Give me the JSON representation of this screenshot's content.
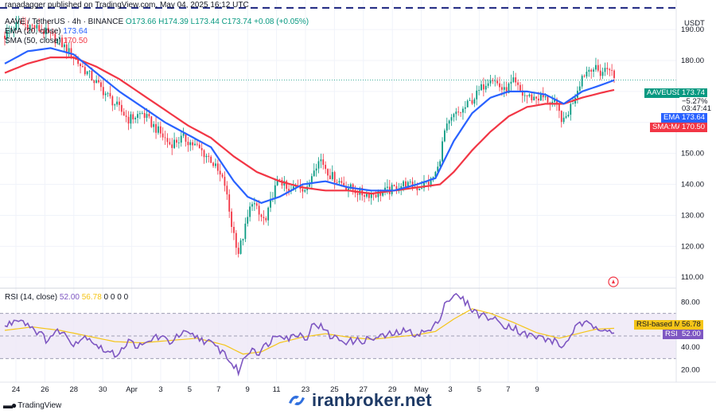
{
  "header": {
    "publisher_line": "ranadagger published on TradingView.com, May 04, 2025 16:12 UTC"
  },
  "legend": {
    "symbol": "AAVE / TetherUS · 4h · BINANCE",
    "ohlc": "O173.66 H174.39 L173.44 C173.74 +0.08 (+0.05%)",
    "ema_label": "EMA (20, close)",
    "ema_value": "173.64",
    "sma_label": "SMA (50, close)",
    "sma_value": "170.50",
    "rsi_label": "RSI (14, close)",
    "rsi_value": "52.00",
    "rsi_ma_value": "56.78",
    "rsi_extra": "0 0 0 0"
  },
  "price_axis": {
    "currency": "USDT",
    "ticks": [
      "190.00",
      "180.00",
      "170.00",
      "160.00",
      "150.00",
      "140.00",
      "130.00",
      "120.00",
      "110.00"
    ]
  },
  "rsi_axis": {
    "ticks": [
      "80.00",
      "60.00",
      "40.00",
      "20.00"
    ]
  },
  "tags": {
    "price_symbol": "AAVEUSDT",
    "price_value": "173.74",
    "price_change": "−5.27%",
    "countdown": "03:47:41",
    "ema_name": "EMA",
    "ema_value": "173.64",
    "sma_name": "SMA:MA",
    "sma_value": "170.50",
    "rsi_ma_name": "RSI-based MA",
    "rsi_ma_value": "56.78",
    "rsi_name": "RSI",
    "rsi_value": "52.00"
  },
  "watermark": {
    "text": "iranbroker.net"
  },
  "footer": {
    "brand": "TradingView"
  },
  "colors": {
    "up": "#089981",
    "down": "#f23645",
    "ema": "#2962ff",
    "sma": "#f23645",
    "rsi": "#7e57c2",
    "rsi_ma": "#f5c518",
    "rsi_band": "#ede7f6",
    "target_line": "#1a237e"
  },
  "chart_data": [
    {
      "type": "candlestick",
      "name": "AAVEUSDT 4h",
      "x_ticks": [
        "24",
        "26",
        "28",
        "30",
        "Apr",
        "3",
        "5",
        "7",
        "9",
        "11",
        "23",
        "25",
        "27",
        "29",
        "May",
        "3",
        "5",
        "7",
        "9"
      ],
      "y_range": [
        108,
        198
      ],
      "y_ticks": [
        190,
        180,
        170,
        160,
        150,
        140,
        130,
        120,
        110
      ],
      "horizontal_line": 197,
      "last_price": 173.74,
      "segments": [
        [
          0,
          188
        ],
        [
          6,
          192
        ],
        [
          12,
          191
        ],
        [
          18,
          189
        ],
        [
          24,
          186
        ],
        [
          30,
          181
        ],
        [
          36,
          176
        ],
        [
          42,
          171
        ],
        [
          48,
          166
        ],
        [
          54,
          161
        ],
        [
          60,
          163
        ],
        [
          66,
          158
        ],
        [
          72,
          153
        ],
        [
          78,
          155
        ],
        [
          84,
          152
        ],
        [
          90,
          148
        ],
        [
          96,
          140
        ],
        [
          99,
          127
        ],
        [
          102,
          118
        ],
        [
          105,
          126
        ],
        [
          108,
          135
        ],
        [
          111,
          130
        ],
        [
          114,
          128
        ],
        [
          117,
          137
        ],
        [
          120,
          142
        ],
        [
          124,
          137
        ],
        [
          128,
          140
        ],
        [
          132,
          138
        ],
        [
          135,
          146
        ],
        [
          138,
          148
        ],
        [
          142,
          143
        ],
        [
          146,
          141
        ],
        [
          150,
          139
        ],
        [
          156,
          137
        ],
        [
          162,
          137
        ],
        [
          168,
          138
        ],
        [
          174,
          140
        ],
        [
          180,
          139
        ],
        [
          186,
          141
        ],
        [
          189,
          145
        ],
        [
          192,
          157
        ],
        [
          196,
          162
        ],
        [
          200,
          164
        ],
        [
          206,
          169
        ],
        [
          212,
          175
        ],
        [
          218,
          170
        ],
        [
          222,
          173
        ],
        [
          226,
          169
        ],
        [
          230,
          168
        ],
        [
          235,
          168
        ],
        [
          240,
          166
        ],
        [
          244,
          160
        ],
        [
          248,
          167
        ],
        [
          252,
          175
        ],
        [
          256,
          178
        ],
        [
          260,
          176
        ],
        [
          264,
          178
        ],
        [
          266,
          174
        ]
      ],
      "ema": [
        [
          0,
          179
        ],
        [
          10,
          183
        ],
        [
          20,
          184
        ],
        [
          30,
          182
        ],
        [
          40,
          176
        ],
        [
          50,
          170
        ],
        [
          60,
          165
        ],
        [
          70,
          160
        ],
        [
          80,
          156
        ],
        [
          90,
          152
        ],
        [
          100,
          141
        ],
        [
          106,
          136
        ],
        [
          112,
          134
        ],
        [
          120,
          136
        ],
        [
          130,
          140
        ],
        [
          140,
          141
        ],
        [
          150,
          139
        ],
        [
          160,
          138
        ],
        [
          170,
          138
        ],
        [
          180,
          140
        ],
        [
          188,
          142
        ],
        [
          196,
          154
        ],
        [
          204,
          163
        ],
        [
          212,
          168
        ],
        [
          220,
          170
        ],
        [
          228,
          170
        ],
        [
          236,
          169
        ],
        [
          244,
          166
        ],
        [
          252,
          170
        ],
        [
          260,
          172
        ],
        [
          266,
          173.64
        ]
      ],
      "sma": [
        [
          0,
          176
        ],
        [
          10,
          179
        ],
        [
          20,
          181
        ],
        [
          30,
          181
        ],
        [
          40,
          178
        ],
        [
          50,
          174
        ],
        [
          60,
          169
        ],
        [
          70,
          164
        ],
        [
          80,
          159
        ],
        [
          90,
          155
        ],
        [
          100,
          149
        ],
        [
          110,
          144
        ],
        [
          120,
          141
        ],
        [
          130,
          139
        ],
        [
          140,
          138
        ],
        [
          150,
          138
        ],
        [
          160,
          137
        ],
        [
          170,
          138
        ],
        [
          180,
          139
        ],
        [
          190,
          140
        ],
        [
          196,
          144
        ],
        [
          204,
          151
        ],
        [
          212,
          157
        ],
        [
          220,
          162
        ],
        [
          228,
          165
        ],
        [
          236,
          166
        ],
        [
          244,
          166
        ],
        [
          252,
          168
        ],
        [
          260,
          169.5
        ],
        [
          266,
          170.5
        ]
      ]
    },
    {
      "type": "line",
      "name": "RSI (14, close)",
      "y_range": [
        12,
        88
      ],
      "y_ticks": [
        80,
        60,
        40,
        20
      ],
      "band": [
        30,
        70
      ],
      "midline": 50,
      "series": [
        {
          "name": "RSI",
          "values": [
            [
              0,
              58
            ],
            [
              6,
              66
            ],
            [
              12,
              58
            ],
            [
              18,
              47
            ],
            [
              24,
              55
            ],
            [
              30,
              44
            ],
            [
              36,
              50
            ],
            [
              42,
              39
            ],
            [
              48,
              33
            ],
            [
              54,
              45
            ],
            [
              60,
              40
            ],
            [
              66,
              50
            ],
            [
              72,
              45
            ],
            [
              78,
              52
            ],
            [
              84,
              49
            ],
            [
              90,
              43
            ],
            [
              96,
              35
            ],
            [
              99,
              25
            ],
            [
              102,
              19
            ],
            [
              105,
              32
            ],
            [
              108,
              40
            ],
            [
              111,
              35
            ],
            [
              114,
              42
            ],
            [
              117,
              48
            ],
            [
              120,
              53
            ],
            [
              124,
              48
            ],
            [
              128,
              52
            ],
            [
              132,
              49
            ],
            [
              135,
              62
            ],
            [
              138,
              58
            ],
            [
              142,
              50
            ],
            [
              146,
              47
            ],
            [
              150,
              45
            ],
            [
              156,
              46
            ],
            [
              162,
              48
            ],
            [
              168,
              51
            ],
            [
              174,
              54
            ],
            [
              180,
              52
            ],
            [
              186,
              55
            ],
            [
              189,
              62
            ],
            [
              192,
              79
            ],
            [
              196,
              86
            ],
            [
              200,
              82
            ],
            [
              206,
              70
            ],
            [
              212,
              66
            ],
            [
              218,
              60
            ],
            [
              222,
              58
            ],
            [
              226,
              52
            ],
            [
              230,
              50
            ],
            [
              235,
              48
            ],
            [
              240,
              45
            ],
            [
              244,
              40
            ],
            [
              248,
              55
            ],
            [
              252,
              61
            ],
            [
              256,
              59
            ],
            [
              260,
              58
            ],
            [
              264,
              56
            ],
            [
              266,
              52
            ]
          ]
        },
        {
          "name": "RSI-based MA",
          "values": [
            [
              0,
              55
            ],
            [
              12,
              58
            ],
            [
              24,
              55
            ],
            [
              36,
              50
            ],
            [
              48,
              45
            ],
            [
              60,
              44
            ],
            [
              72,
              46
            ],
            [
              84,
              48
            ],
            [
              96,
              42
            ],
            [
              104,
              34
            ],
            [
              112,
              36
            ],
            [
              120,
              44
            ],
            [
              130,
              49
            ],
            [
              140,
              52
            ],
            [
              150,
              49
            ],
            [
              160,
              47
            ],
            [
              170,
              49
            ],
            [
              180,
              51
            ],
            [
              188,
              54
            ],
            [
              196,
              65
            ],
            [
              204,
              74
            ],
            [
              212,
              70
            ],
            [
              222,
              62
            ],
            [
              232,
              53
            ],
            [
              242,
              48
            ],
            [
              250,
              52
            ],
            [
              258,
              56
            ],
            [
              266,
              56.78
            ]
          ]
        }
      ]
    }
  ]
}
